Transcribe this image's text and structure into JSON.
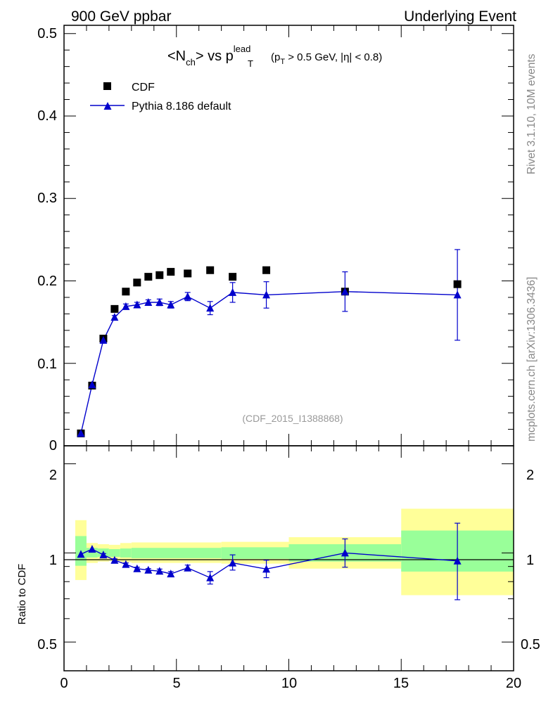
{
  "header": {
    "left": "900 GeV ppbar",
    "right": "Underlying Event"
  },
  "side_text": {
    "upper": "Rivet 3.1.10,  10M events",
    "lower": "mcplots.cern.ch [arXiv:1306.3436]"
  },
  "chart_data": [
    {
      "type": "scatter",
      "title": {
        "n": "<N",
        "n_sub": "ch",
        "vs": "> vs p",
        "p_sup": "lead",
        "p_sub": "T",
        "cut_open": "(p",
        "cut_sub": "T",
        "cut_rest": " > 0.5 GeV, |",
        "eta": "η",
        "cut_close": "| < 0.8)"
      },
      "watermark": "(CDF_2015_I1388868)",
      "xlim": [
        0,
        20
      ],
      "ylim": [
        0,
        0.51
      ],
      "y_ticks": [
        "0",
        "0.1",
        "0.2",
        "0.3",
        "0.4",
        "0.5"
      ],
      "legend": {
        "placement": "top-left",
        "entries": [
          "CDF",
          "Pythia 8.186 default"
        ]
      },
      "series": [
        {
          "name": "CDF",
          "marker": "square",
          "color": "#000000",
          "x": [
            0.75,
            1.25,
            1.75,
            2.25,
            2.75,
            3.25,
            3.75,
            4.25,
            4.75,
            5.5,
            6.5,
            7.5,
            9.0,
            12.5,
            17.5
          ],
          "y": [
            0.015,
            0.073,
            0.13,
            0.166,
            0.187,
            0.198,
            0.205,
            0.207,
            0.211,
            0.209,
            0.213,
            0.205,
            0.213,
            0.187,
            0.196
          ]
        },
        {
          "name": "Pythia 8.186 default",
          "marker": "triangle",
          "color": "#0000cc",
          "x": [
            0.75,
            1.25,
            1.75,
            2.25,
            2.75,
            3.25,
            3.75,
            4.25,
            4.75,
            5.5,
            6.5,
            7.5,
            9.0,
            12.5,
            17.5
          ],
          "y": [
            0.015,
            0.074,
            0.128,
            0.156,
            0.169,
            0.171,
            0.174,
            0.174,
            0.171,
            0.181,
            0.167,
            0.186,
            0.183,
            0.187,
            0.183
          ],
          "err": [
            0,
            0,
            0.002,
            0.002,
            0.003,
            0.003,
            0.003,
            0.004,
            0.004,
            0.005,
            0.008,
            0.012,
            0.016,
            0.024,
            0.055
          ]
        }
      ]
    },
    {
      "type": "scatter",
      "ylabel": "Ratio to CDF",
      "xlim": [
        0,
        20
      ],
      "ylim": [
        0.4,
        2.3
      ],
      "y_scale": "log",
      "y_ticks": [
        "0.5",
        "1",
        "2"
      ],
      "x_ticks": [
        "0",
        "5",
        "10",
        "15",
        "20"
      ],
      "bands": [
        {
          "x0": 0.5,
          "x1": 1.0,
          "yellow": [
            0.81,
            1.29
          ],
          "green": [
            0.905,
            1.14
          ]
        },
        {
          "x0": 1.0,
          "x1": 1.5,
          "yellow": [
            0.925,
            1.08
          ],
          "green": [
            0.965,
            1.04
          ]
        },
        {
          "x0": 1.5,
          "x1": 2.0,
          "yellow": [
            0.935,
            1.07
          ],
          "green": [
            0.97,
            1.035
          ]
        },
        {
          "x0": 2.0,
          "x1": 2.5,
          "yellow": [
            0.94,
            1.065
          ],
          "green": [
            0.97,
            1.03
          ]
        },
        {
          "x0": 2.5,
          "x1": 3.0,
          "yellow": [
            0.93,
            1.08
          ],
          "green": [
            0.965,
            1.035
          ]
        },
        {
          "x0": 3.0,
          "x1": 7.0,
          "yellow": [
            0.925,
            1.085
          ],
          "green": [
            0.96,
            1.04
          ]
        },
        {
          "x0": 7.0,
          "x1": 10.0,
          "yellow": [
            0.92,
            1.09
          ],
          "green": [
            0.955,
            1.045
          ]
        },
        {
          "x0": 10.0,
          "x1": 15.0,
          "yellow": [
            0.885,
            1.13
          ],
          "green": [
            0.935,
            1.07
          ]
        },
        {
          "x0": 15.0,
          "x1": 20.0,
          "yellow": [
            0.72,
            1.41
          ],
          "green": [
            0.865,
            1.19
          ]
        }
      ],
      "series": [
        {
          "name": "Pythia 8.186 default / CDF",
          "color": "#0000cc",
          "x": [
            0.75,
            1.25,
            1.75,
            2.25,
            2.75,
            3.25,
            3.75,
            4.25,
            4.75,
            5.5,
            6.5,
            7.5,
            9.0,
            12.5,
            17.5
          ],
          "y": [
            0.99,
            1.03,
            0.985,
            0.945,
            0.915,
            0.885,
            0.875,
            0.868,
            0.85,
            0.89,
            0.825,
            0.925,
            0.882,
            1.0,
            0.94
          ],
          "lo": [
            0.99,
            1.03,
            0.975,
            0.935,
            0.905,
            0.875,
            0.865,
            0.855,
            0.835,
            0.87,
            0.785,
            0.875,
            0.825,
            0.895,
            0.695
          ],
          "hi": [
            0.99,
            1.03,
            0.995,
            0.955,
            0.925,
            0.895,
            0.885,
            0.882,
            0.865,
            0.91,
            0.865,
            0.985,
            0.945,
            1.115,
            1.26
          ]
        }
      ]
    }
  ]
}
